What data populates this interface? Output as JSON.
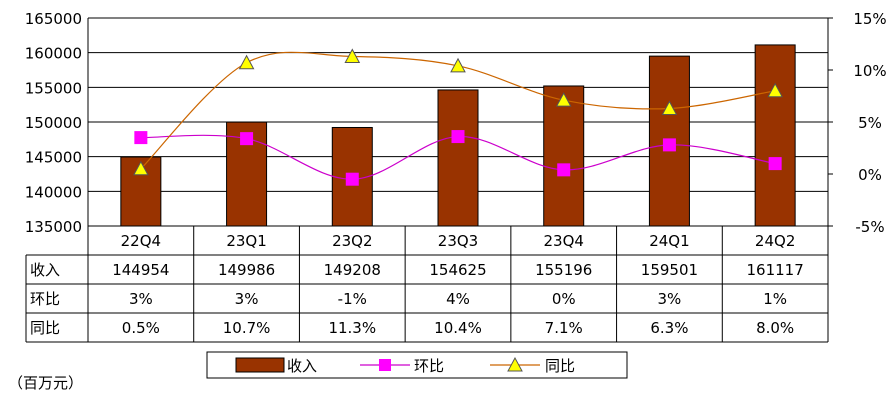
{
  "chart_data": {
    "type": "bar",
    "categories": [
      "22Q4",
      "23Q1",
      "23Q2",
      "23Q3",
      "23Q4",
      "24Q1",
      "24Q2"
    ],
    "ylim": [
      135000,
      165000
    ],
    "y_ticks": [
      "135000",
      "140000",
      "145000",
      "150000",
      "155000",
      "160000",
      "165000"
    ],
    "y2lim": [
      -5,
      15
    ],
    "y2_ticks": [
      "-5%",
      "0%",
      "5%",
      "10%",
      "15%"
    ],
    "grid": "horizontal",
    "series": [
      {
        "name": "收入",
        "type": "bar",
        "axis": "left",
        "color": "#993300",
        "values": [
          144954,
          149986,
          149208,
          154625,
          155196,
          159501,
          161117
        ]
      },
      {
        "name": "环比",
        "type": "line",
        "axis": "right",
        "color": "#cc00cc",
        "marker": "square",
        "marker_color": "#ff00ff",
        "values": [
          3.5,
          3.4,
          -0.5,
          3.6,
          0.4,
          2.8,
          1.0
        ]
      },
      {
        "name": "同比",
        "type": "line",
        "axis": "right",
        "color": "#cc6600",
        "marker": "triangle",
        "marker_color": "#ffff00",
        "values": [
          0.5,
          10.7,
          11.3,
          10.4,
          7.1,
          6.3,
          8.0
        ]
      }
    ],
    "table": {
      "rows": [
        {
          "label": "收入",
          "values": [
            "144954",
            "149986",
            "149208",
            "154625",
            "155196",
            "159501",
            "161117"
          ]
        },
        {
          "label": "环比",
          "values": [
            "3%",
            "3%",
            "-1%",
            "4%",
            "0%",
            "3%",
            "1%"
          ]
        },
        {
          "label": "同比",
          "values": [
            "0.5%",
            "10.7%",
            "11.3%",
            "10.4%",
            "7.1%",
            "6.3%",
            "8.0%"
          ]
        }
      ]
    },
    "legend": {
      "placement": "bottom",
      "entries": [
        "收入",
        "环比",
        "同比"
      ]
    },
    "unit_label": "（百万元）"
  }
}
